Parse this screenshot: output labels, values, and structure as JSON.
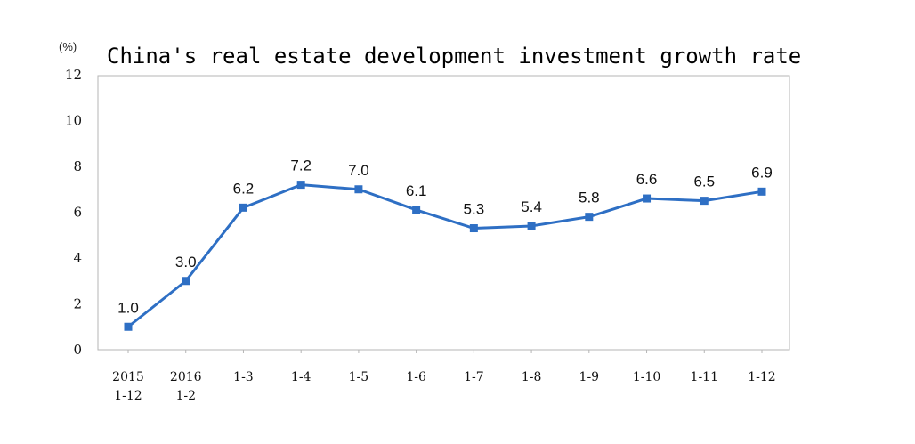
{
  "chart_data": {
    "type": "line",
    "title": "China's real estate development investment growth rate",
    "unit_label": "(%)",
    "xlabel": "",
    "ylabel": "",
    "ylim": [
      0,
      12
    ],
    "yticks": [
      "0",
      "2",
      "4",
      "6",
      "8",
      "10",
      "12"
    ],
    "grid": false,
    "legend": "none",
    "line_color": "#2e6fc4",
    "categories": [
      [
        "2015",
        "1-12"
      ],
      [
        "2016",
        "1-2"
      ],
      [
        "1-3"
      ],
      [
        "1-4"
      ],
      [
        "1-5"
      ],
      [
        "1-6"
      ],
      [
        "1-7"
      ],
      [
        "1-8"
      ],
      [
        "1-9"
      ],
      [
        "1-10"
      ],
      [
        "1-11"
      ],
      [
        "1-12"
      ]
    ],
    "values": [
      1.0,
      3.0,
      6.2,
      7.2,
      7.0,
      6.1,
      5.3,
      5.4,
      5.8,
      6.6,
      6.5,
      6.9
    ],
    "data_labels": [
      "1.0",
      "3.0",
      "6.2",
      "7.2",
      "7.0",
      "6.1",
      "5.3",
      "5.4",
      "5.8",
      "6.6",
      "6.5",
      "6.9"
    ]
  }
}
